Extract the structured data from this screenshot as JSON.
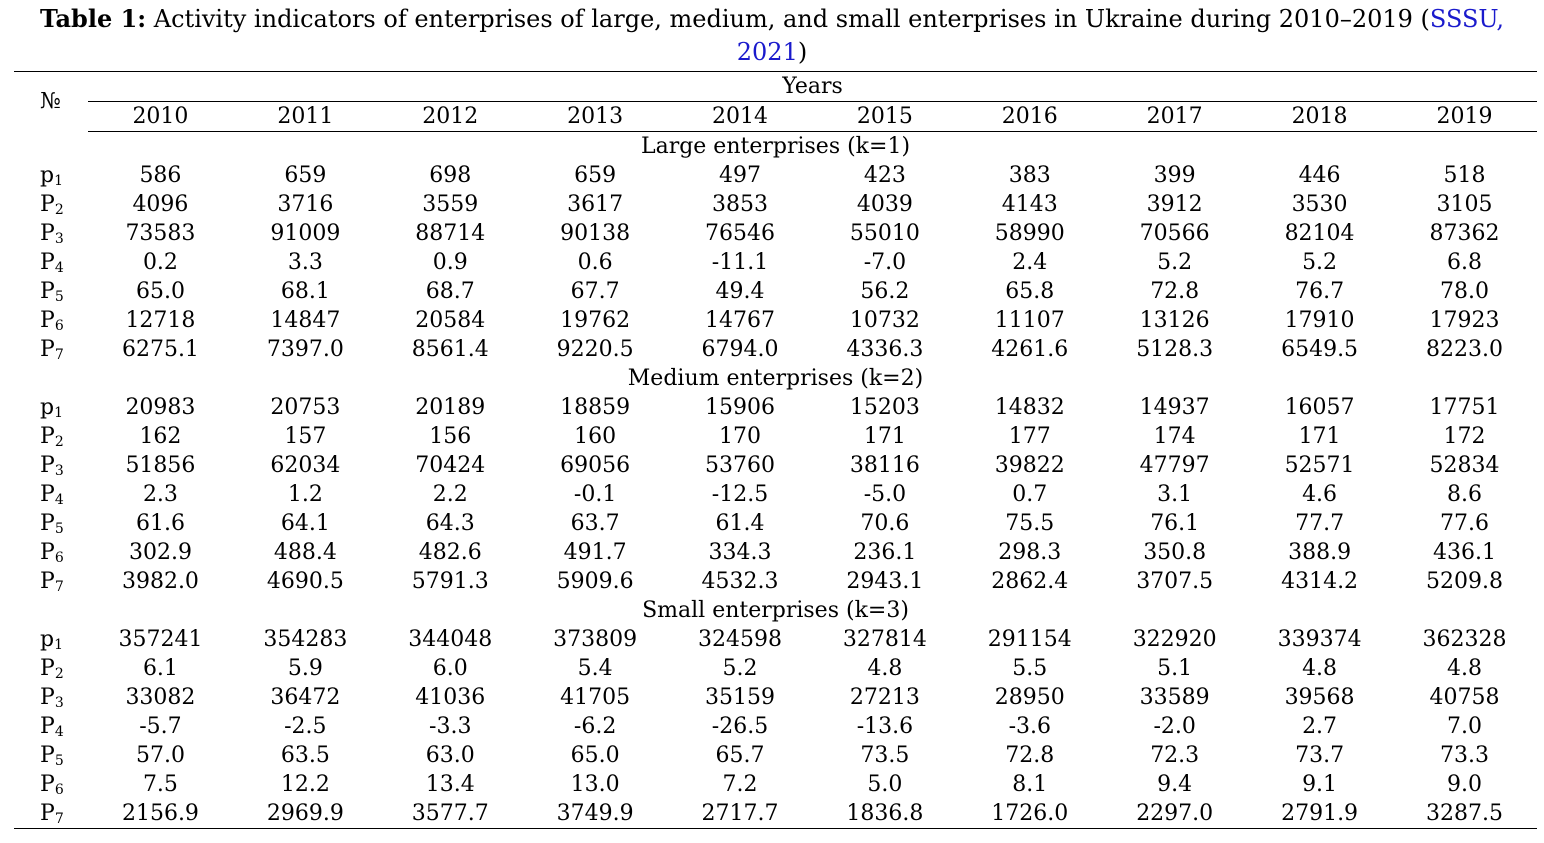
{
  "caption": {
    "label": "Table 1:",
    "text": " Activity indicators of enterprises of large, medium, and small enterprises in Ukraine during 2010–2019 (",
    "citation": "SSSU, 2021",
    "close": ")"
  },
  "header": {
    "number_symbol": "№",
    "years_label": "Years",
    "years": [
      "2010",
      "2011",
      "2012",
      "2013",
      "2014",
      "2015",
      "2016",
      "2017",
      "2018",
      "2019"
    ]
  },
  "sections": [
    {
      "title": "Large enterprises (k=1)",
      "rows": [
        {
          "letter": "p",
          "sub": "1",
          "values": [
            "586",
            "659",
            "698",
            "659",
            "497",
            "423",
            "383",
            "399",
            "446",
            "518"
          ]
        },
        {
          "letter": "P",
          "sub": "2",
          "values": [
            "4096",
            "3716",
            "3559",
            "3617",
            "3853",
            "4039",
            "4143",
            "3912",
            "3530",
            "3105"
          ]
        },
        {
          "letter": "P",
          "sub": "3",
          "values": [
            "73583",
            "91009",
            "88714",
            "90138",
            "76546",
            "55010",
            "58990",
            "70566",
            "82104",
            "87362"
          ]
        },
        {
          "letter": "P",
          "sub": "4",
          "values": [
            "0.2",
            "3.3",
            "0.9",
            "0.6",
            "-11.1",
            "-7.0",
            "2.4",
            "5.2",
            "5.2",
            "6.8"
          ]
        },
        {
          "letter": "P",
          "sub": "5",
          "values": [
            "65.0",
            "68.1",
            "68.7",
            "67.7",
            "49.4",
            "56.2",
            "65.8",
            "72.8",
            "76.7",
            "78.0"
          ]
        },
        {
          "letter": "P",
          "sub": "6",
          "values": [
            "12718",
            "14847",
            "20584",
            "19762",
            "14767",
            "10732",
            "11107",
            "13126",
            "17910",
            "17923"
          ]
        },
        {
          "letter": "P",
          "sub": "7",
          "values": [
            "6275.1",
            "7397.0",
            "8561.4",
            "9220.5",
            "6794.0",
            "4336.3",
            "4261.6",
            "5128.3",
            "6549.5",
            "8223.0"
          ]
        }
      ]
    },
    {
      "title": "Medium enterprises (k=2)",
      "rows": [
        {
          "letter": "p",
          "sub": "1",
          "values": [
            "20983",
            "20753",
            "20189",
            "18859",
            "15906",
            "15203",
            "14832",
            "14937",
            "16057",
            "17751"
          ]
        },
        {
          "letter": "P",
          "sub": "2",
          "values": [
            "162",
            "157",
            "156",
            "160",
            "170",
            "171",
            "177",
            "174",
            "171",
            "172"
          ]
        },
        {
          "letter": "P",
          "sub": "3",
          "values": [
            "51856",
            "62034",
            "70424",
            "69056",
            "53760",
            "38116",
            "39822",
            "47797",
            "52571",
            "52834"
          ]
        },
        {
          "letter": "P",
          "sub": "4",
          "values": [
            "2.3",
            "1.2",
            "2.2",
            "-0.1",
            "-12.5",
            "-5.0",
            "0.7",
            "3.1",
            "4.6",
            "8.6"
          ]
        },
        {
          "letter": "P",
          "sub": "5",
          "values": [
            "61.6",
            "64.1",
            "64.3",
            "63.7",
            "61.4",
            "70.6",
            "75.5",
            "76.1",
            "77.7",
            "77.6"
          ]
        },
        {
          "letter": "P",
          "sub": "6",
          "values": [
            "302.9",
            "488.4",
            "482.6",
            "491.7",
            "334.3",
            "236.1",
            "298.3",
            "350.8",
            "388.9",
            "436.1"
          ]
        },
        {
          "letter": "P",
          "sub": "7",
          "values": [
            "3982.0",
            "4690.5",
            "5791.3",
            "5909.6",
            "4532.3",
            "2943.1",
            "2862.4",
            "3707.5",
            "4314.2",
            "5209.8"
          ]
        }
      ]
    },
    {
      "title": "Small enterprises (k=3)",
      "rows": [
        {
          "letter": "p",
          "sub": "1",
          "values": [
            "357241",
            "354283",
            "344048",
            "373809",
            "324598",
            "327814",
            "291154",
            "322920",
            "339374",
            "362328"
          ]
        },
        {
          "letter": "P",
          "sub": "2",
          "values": [
            "6.1",
            "5.9",
            "6.0",
            "5.4",
            "5.2",
            "4.8",
            "5.5",
            "5.1",
            "4.8",
            "4.8"
          ]
        },
        {
          "letter": "P",
          "sub": "3",
          "values": [
            "33082",
            "36472",
            "41036",
            "41705",
            "35159",
            "27213",
            "28950",
            "33589",
            "39568",
            "40758"
          ]
        },
        {
          "letter": "P",
          "sub": "4",
          "values": [
            "-5.7",
            "-2.5",
            "-3.3",
            "-6.2",
            "-26.5",
            "-13.6",
            "-3.6",
            "-2.0",
            "2.7",
            "7.0"
          ]
        },
        {
          "letter": "P",
          "sub": "5",
          "values": [
            "57.0",
            "63.5",
            "63.0",
            "65.0",
            "65.7",
            "73.5",
            "72.8",
            "72.3",
            "73.7",
            "73.3"
          ]
        },
        {
          "letter": "P",
          "sub": "6",
          "values": [
            "7.5",
            "12.2",
            "13.4",
            "13.0",
            "7.2",
            "5.0",
            "8.1",
            "9.4",
            "9.1",
            "9.0"
          ]
        },
        {
          "letter": "P",
          "sub": "7",
          "values": [
            "2156.9",
            "2969.9",
            "3577.7",
            "3749.9",
            "2717.7",
            "1836.8",
            "1726.0",
            "2297.0",
            "2791.9",
            "3287.5"
          ]
        }
      ]
    }
  ]
}
